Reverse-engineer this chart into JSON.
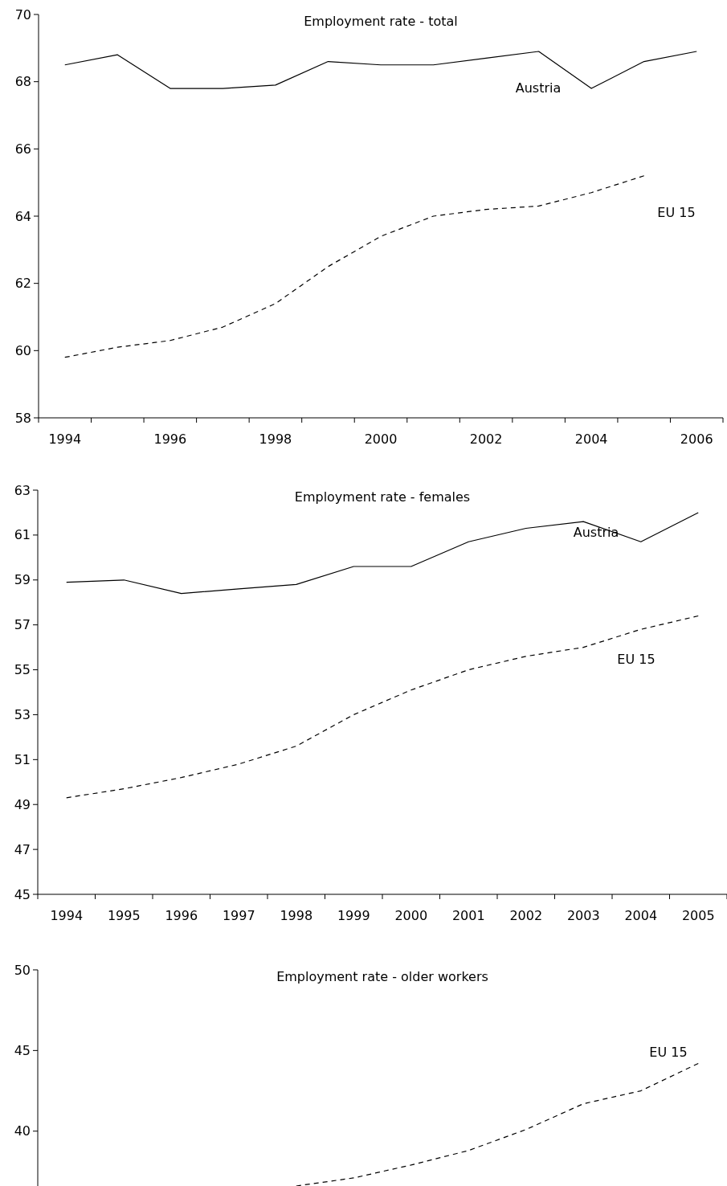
{
  "chart_data": [
    {
      "type": "line",
      "title": "Employment rate - total",
      "categories": [
        "1994",
        null,
        "1996",
        null,
        "1998",
        null,
        "2000",
        null,
        "2002",
        null,
        "2004",
        null,
        "2006"
      ],
      "ylim": [
        58,
        70
      ],
      "yticks": [
        58,
        60,
        62,
        64,
        66,
        68,
        70
      ],
      "grid": false,
      "series": [
        {
          "name": "Austria",
          "color": "#000000",
          "line_style": "solid",
          "values": [
            68.5,
            68.8,
            67.8,
            67.8,
            67.9,
            68.6,
            68.5,
            68.5,
            68.7,
            68.9,
            67.8,
            68.6,
            68.9
          ]
        },
        {
          "name": "EU 15",
          "color": "#000000",
          "line_style": "dashed",
          "values": [
            59.8,
            60.1,
            60.3,
            60.7,
            61.4,
            62.5,
            63.4,
            64.0,
            64.2,
            64.3,
            64.7,
            65.2,
            null
          ]
        }
      ]
    },
    {
      "type": "line",
      "title": "Employment rate - females",
      "categories": [
        "1994",
        "1995",
        "1996",
        "1997",
        "1998",
        "1999",
        "2000",
        "2001",
        "2002",
        "2003",
        "2004",
        "2005"
      ],
      "ylim": [
        45,
        63
      ],
      "yticks": [
        45,
        47,
        49,
        51,
        53,
        55,
        57,
        59,
        61,
        63
      ],
      "grid": false,
      "series": [
        {
          "name": "Austria",
          "color": "#000000",
          "line_style": "solid",
          "values": [
            58.9,
            59.0,
            58.4,
            58.6,
            58.8,
            59.6,
            59.6,
            60.7,
            61.3,
            61.6,
            60.7,
            62.0
          ]
        },
        {
          "name": "EU 15",
          "color": "#000000",
          "line_style": "dashed",
          "values": [
            49.3,
            49.7,
            50.2,
            50.8,
            51.6,
            53.0,
            54.1,
            55.0,
            55.6,
            56.0,
            56.8,
            57.4
          ]
        }
      ]
    },
    {
      "type": "line",
      "title": "Employment rate - older workers",
      "categories": [
        null,
        null,
        null,
        null,
        null,
        null,
        null,
        null,
        null,
        null,
        null,
        null
      ],
      "ylim": [
        36.6,
        50
      ],
      "yticks": [
        40,
        45,
        50
      ],
      "grid": false,
      "tick_labels": "y",
      "series": [
        {
          "name": "EU 15",
          "color": "#000000",
          "line_style": "dashed",
          "values": [
            null,
            null,
            null,
            null,
            36.6,
            37.1,
            37.9,
            38.8,
            40.1,
            41.7,
            42.5,
            44.2
          ]
        }
      ]
    }
  ]
}
